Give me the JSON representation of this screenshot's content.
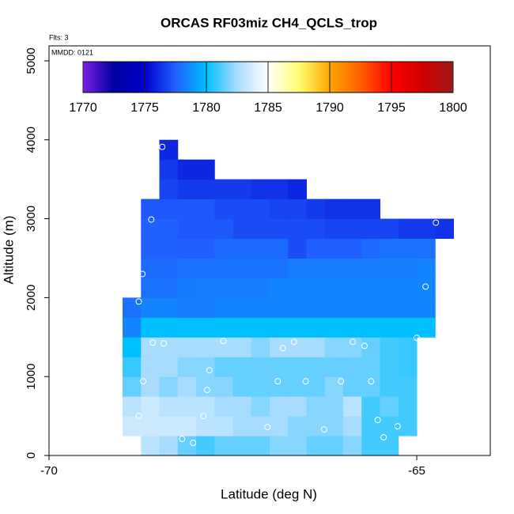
{
  "chart_data": {
    "type": "heatmap",
    "title": "ORCAS RF03miz CH4_QCLS_trop",
    "subtitle": "Flts: 3",
    "annotation": "MMDD: 0121",
    "x_label": "Latitude (deg N)",
    "y_label": "Altitude (m)",
    "xlim": [
      -70,
      -64
    ],
    "ylim": [
      0,
      5190
    ],
    "xticks": [
      -70,
      -65
    ],
    "yticks": [
      0,
      1000,
      2000,
      3000,
      4000,
      5000
    ],
    "x_bins": [
      -69,
      -68.75,
      -68.5,
      -68.25,
      -68,
      -67.75,
      -67.5,
      -67.25,
      -67,
      -66.75,
      -66.5,
      -66.25,
      -66,
      -65.75,
      -65.5,
      -65.25,
      -65,
      -64.75,
      -64.5
    ],
    "y_bins": [
      0,
      250,
      500,
      750,
      1000,
      1250,
      1500,
      1750,
      2000,
      2250,
      2500,
      2750,
      3000,
      3250,
      3500,
      3750,
      4000
    ],
    "z": [
      [
        1785,
        1783,
        1782.5,
        1781.5,
        1781,
        1781.5,
        1781.5,
        1781.5,
        1782,
        1782,
        1781.5,
        1781.5,
        1782,
        1781,
        1781,
        null,
        null,
        null
      ],
      [
        1783.5,
        1783.5,
        1783.5,
        1783.5,
        1783,
        1783,
        1782.5,
        1782.5,
        1782.5,
        1782,
        1782,
        1782,
        1782.5,
        1781,
        1781,
        1781,
        null,
        null
      ],
      [
        1783,
        1783.5,
        1783,
        1783,
        1783,
        1782.5,
        1782.5,
        1782,
        1782.5,
        1782.5,
        1782,
        1782,
        1783,
        1781,
        1781.5,
        1781,
        null,
        null
      ],
      [
        1781.5,
        1782.5,
        1782,
        1782.5,
        1782,
        1782,
        1781.5,
        1781.5,
        1781.5,
        1781.5,
        1781.5,
        1782,
        1781.5,
        1781.5,
        1781,
        1781,
        null,
        null
      ],
      [
        1780.8,
        1782.5,
        1782.5,
        1782,
        1782,
        1781.5,
        1781.5,
        1781.5,
        1781.5,
        1781.5,
        1781.5,
        1781.5,
        1781.5,
        1781.5,
        1781,
        1780.8,
        null,
        null
      ],
      [
        1780,
        1782.5,
        1782.5,
        1782.5,
        1782.5,
        1782.5,
        1782.5,
        1782,
        1782.5,
        1782.5,
        1782.5,
        1782,
        1782,
        1781.5,
        1781,
        1780.8,
        null,
        null
      ],
      [
        1778.5,
        1780,
        1780,
        1780,
        1780,
        1780,
        1780,
        1780,
        1780,
        1780,
        1780,
        1780,
        1780,
        1780,
        1780,
        1780,
        1780,
        null
      ],
      [
        1778,
        1778.5,
        1778.5,
        1778.3,
        1778.3,
        1778.5,
        1778.5,
        1778.5,
        1778.5,
        1778.5,
        1778.5,
        1778.5,
        1778.5,
        1778.5,
        1778.5,
        1778.5,
        1778.5,
        null
      ],
      [
        null,
        1778,
        1778,
        1778.2,
        1778.3,
        1778.3,
        1778.3,
        1778.3,
        1778.5,
        1778.5,
        1778.5,
        1778.5,
        1778.5,
        1778.5,
        1778.5,
        1778.5,
        1778.5,
        null
      ],
      [
        null,
        1777.8,
        1777.8,
        1778,
        1778,
        1778,
        1778,
        1778,
        1778,
        1778.3,
        1778.3,
        1778.3,
        1778.3,
        1778.3,
        1778.3,
        1778.3,
        1778.5,
        null
      ],
      [
        null,
        1777.5,
        1777.5,
        1777.5,
        1777.5,
        1777.8,
        1777.8,
        1777.8,
        1777.8,
        1777,
        1777.5,
        1777.5,
        1777.5,
        1777.8,
        1778,
        1778,
        1778,
        null
      ],
      [
        null,
        1777.5,
        1777.5,
        1777.3,
        1777.3,
        1777.3,
        1777,
        1777,
        1777,
        1777,
        1777,
        1776.8,
        1776.8,
        1776.8,
        1776.8,
        1776.5,
        1776.5,
        1776.3
      ],
      [
        null,
        1777.3,
        1777.3,
        1777.3,
        1777.3,
        1777,
        1777,
        1777,
        1776.8,
        1776.8,
        1776.5,
        1776.3,
        1776.3,
        1776.3,
        null,
        null,
        null,
        null
      ],
      [
        null,
        null,
        1776.8,
        1776.5,
        1776.5,
        1776.5,
        1776.5,
        1776.3,
        1776.3,
        1776,
        null,
        null,
        null,
        null,
        null,
        null,
        null,
        null
      ],
      [
        null,
        null,
        1776.5,
        1776,
        1776,
        null,
        null,
        null,
        null,
        null,
        null,
        null,
        null,
        null,
        null,
        null,
        null,
        null
      ],
      [
        null,
        null,
        1776,
        null,
        null,
        null,
        null,
        null,
        null,
        null,
        null,
        null,
        null,
        null,
        null,
        null,
        null,
        null
      ]
    ],
    "clim": [
      1770,
      1800
    ],
    "cticks": [
      1770,
      1775,
      1780,
      1785,
      1790,
      1795,
      1800
    ],
    "colorscale": [
      "#7b1fe6",
      "#0000a0",
      "#0000cd",
      "#2060ff",
      "#00bfff",
      "#a8dcff",
      "#ffffff",
      "#ffff70",
      "#ffa500",
      "#ff6000",
      "#ff0000",
      "#d00000",
      "#a01818"
    ],
    "points": {
      "x": [
        -68.46,
        -68.61,
        -68.73,
        -68.78,
        -68.59,
        -68.44,
        -67.63,
        -66.82,
        -66.67,
        -65.87,
        -65.71,
        -65.0,
        -64.88,
        -64.74,
        -67.82,
        -68.72,
        -67.85,
        -66.89,
        -66.51,
        -66.03,
        -65.62,
        -68.78,
        -67.9,
        -67.03,
        -66.26,
        -65.53,
        -65.26,
        -65.45,
        -68.19,
        -68.04,
        -68.99
      ],
      "y": [
        3910,
        2990,
        2300,
        1950,
        1430,
        1420,
        1450,
        1360,
        1440,
        1440,
        1390,
        1490,
        2140,
        2950,
        1080,
        940,
        830,
        940,
        940,
        940,
        940,
        500,
        500,
        360,
        330,
        450,
        370,
        230,
        210,
        160,
        170
      ],
      "color": "#ffffff"
    }
  }
}
